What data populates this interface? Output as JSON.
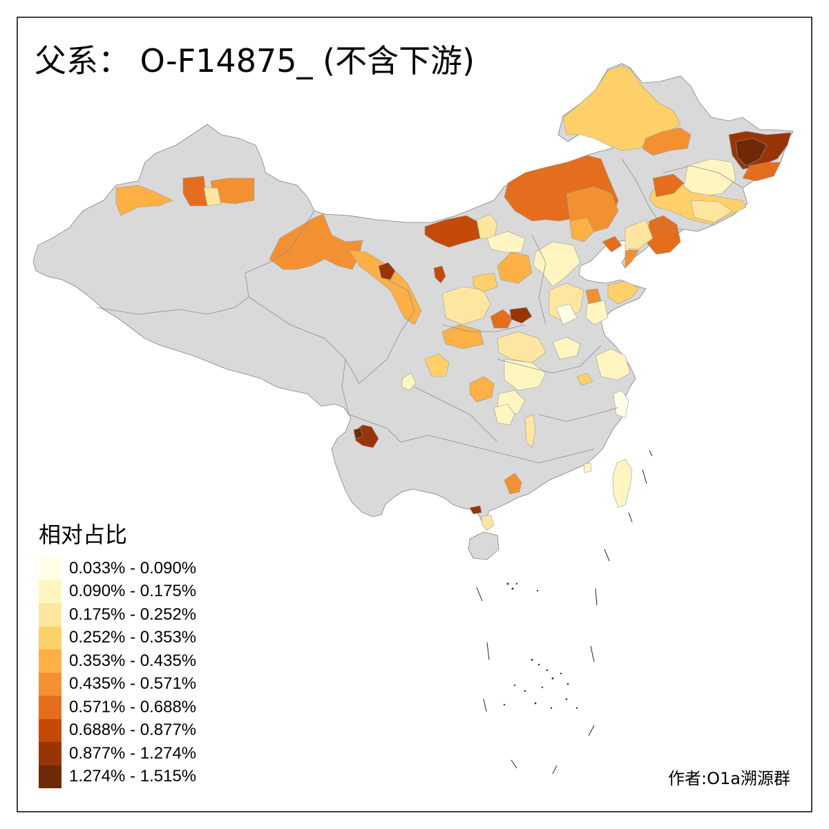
{
  "title": "父系： O-F14875_ (不含下游)",
  "legend": {
    "title": "相对占比",
    "items": [
      {
        "label": "0.033% - 0.090%",
        "color": "#FFFFE5"
      },
      {
        "label": "0.090% - 0.175%",
        "color": "#FFF5C0"
      },
      {
        "label": "0.175% - 0.252%",
        "color": "#FEE6A0"
      },
      {
        "label": "0.252% - 0.353%",
        "color": "#FED06A"
      },
      {
        "label": "0.353% - 0.435%",
        "color": "#FDB045"
      },
      {
        "label": "0.435% - 0.571%",
        "color": "#F39132"
      },
      {
        "label": "0.571% - 0.688%",
        "color": "#E46E1E"
      },
      {
        "label": "0.688% - 0.877%",
        "color": "#C44B07"
      },
      {
        "label": "0.877% - 1.274%",
        "color": "#983507"
      },
      {
        "label": "1.274% - 1.515%",
        "color": "#6E2A06"
      }
    ]
  },
  "author": "作者:O1a溯源群",
  "colors": {
    "land": "#D9D9D9",
    "frame": "#000000"
  }
}
